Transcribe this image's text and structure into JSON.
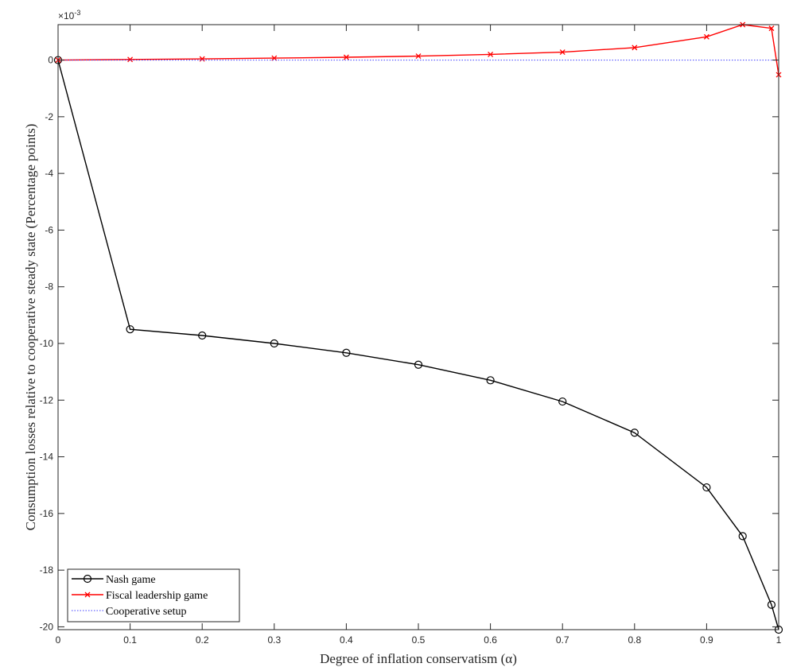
{
  "chart_data": {
    "type": "line",
    "xlabel": "Degree of inflation conservatism (α)",
    "ylabel": "Consumption losses relative to cooperative steady state (Percentage points)",
    "y_exponent_label": "×10",
    "y_exponent_power": "-3",
    "xlim": [
      0,
      1
    ],
    "ylim": [
      -20.1,
      1.25
    ],
    "xticks": [
      0,
      0.1,
      0.2,
      0.3,
      0.4,
      0.5,
      0.6,
      0.7,
      0.8,
      0.9,
      1
    ],
    "xtick_labels": [
      "0",
      "0.1",
      "0.2",
      "0.3",
      "0.4",
      "0.5",
      "0.6",
      "0.7",
      "0.8",
      "0.9",
      "1"
    ],
    "yticks": [
      0,
      -2,
      -4,
      -6,
      -8,
      -10,
      -12,
      -14,
      -16,
      -18,
      -20
    ],
    "ytick_labels": [
      "0",
      "-2",
      "-4",
      "-6",
      "-8",
      "-10",
      "-12",
      "-14",
      "-16",
      "-18",
      "-20"
    ],
    "legend_position": "bottom-left",
    "grid": false,
    "series": [
      {
        "name": "Nash game",
        "color": "#000000",
        "marker": "circle",
        "line_style": "solid",
        "x": [
          0,
          0.1,
          0.2,
          0.3,
          0.4,
          0.5,
          0.6,
          0.7,
          0.8,
          0.9,
          0.95,
          0.99,
          1
        ],
        "y": [
          0,
          -9.5,
          -9.72,
          -10.0,
          -10.33,
          -10.75,
          -11.3,
          -12.05,
          -13.15,
          -15.08,
          -16.8,
          -19.22,
          -20.1
        ]
      },
      {
        "name": "Fiscal leadership game",
        "color": "#ff0000",
        "marker": "x",
        "line_style": "solid",
        "x": [
          0,
          0.1,
          0.2,
          0.3,
          0.4,
          0.5,
          0.6,
          0.7,
          0.8,
          0.9,
          0.95,
          0.99,
          1
        ],
        "y": [
          0,
          0.02,
          0.04,
          0.07,
          0.1,
          0.14,
          0.2,
          0.28,
          0.44,
          0.82,
          1.25,
          1.12,
          -0.52
        ]
      },
      {
        "name": "Cooperative setup",
        "color": "#4040ff",
        "marker": "none",
        "line_style": "dotted",
        "x": [
          0,
          1
        ],
        "y": [
          0,
          0
        ]
      }
    ]
  }
}
